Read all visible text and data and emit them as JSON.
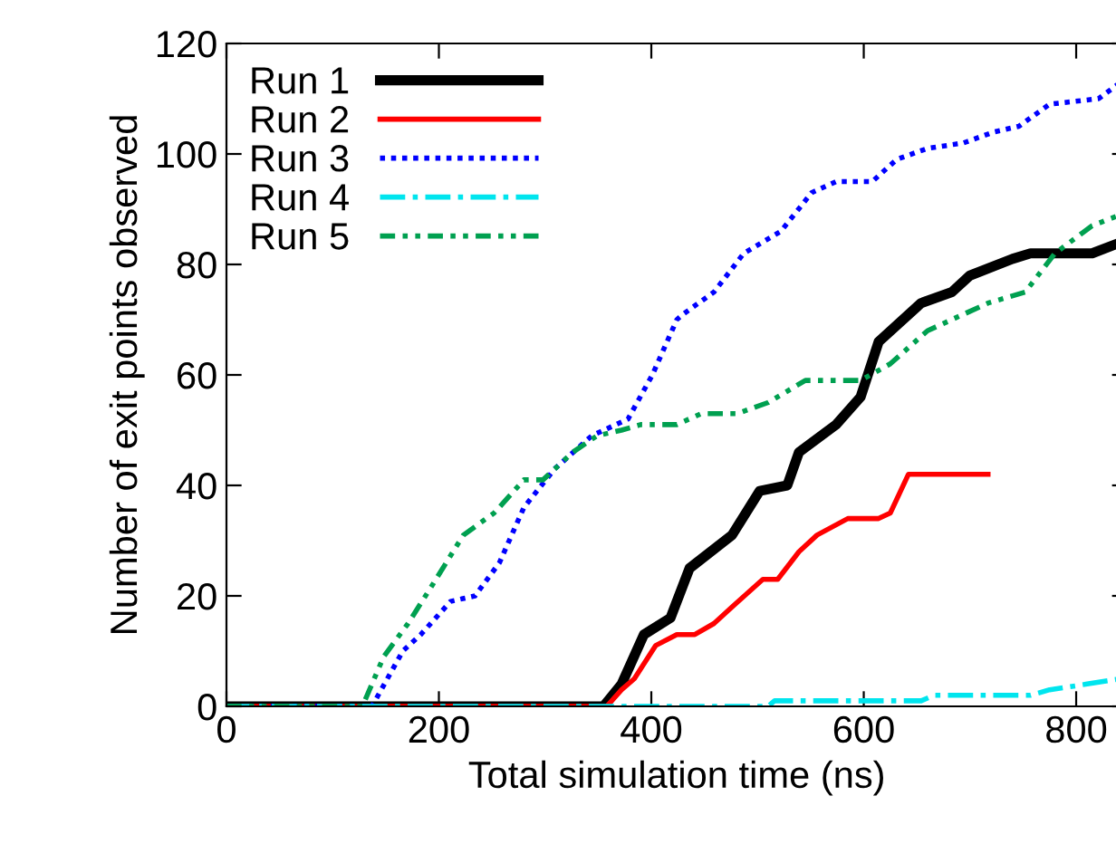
{
  "chart_data": {
    "type": "line",
    "xlabel": "Total simulation time (ns)",
    "ylabel": "Number of exit points observed",
    "xlim": [
      0,
      848
    ],
    "ylim": [
      0,
      120
    ],
    "xticks": [
      0,
      200,
      400,
      600,
      800
    ],
    "yticks": [
      0,
      20,
      40,
      60,
      80,
      100,
      120
    ],
    "grid": false,
    "legend": "top left",
    "series": [
      {
        "name": "Run 1",
        "color": "#000000",
        "line_style": "solid",
        "x": [
          0,
          355,
          372,
          393,
          418,
          436,
          476,
          502,
          528,
          539,
          574,
          597,
          614,
          654,
          683,
          700,
          740,
          757,
          815,
          842
        ],
        "values": [
          0,
          0,
          4,
          13,
          16,
          25,
          31,
          39,
          40,
          46,
          51,
          56,
          66,
          73,
          75,
          78,
          81,
          82,
          82,
          84
        ]
      },
      {
        "name": "Run 2",
        "color": "#ff0000",
        "line_style": "solid",
        "x": [
          0,
          358,
          372,
          384,
          404,
          424,
          441,
          459,
          476,
          505,
          519,
          539,
          556,
          585,
          614,
          625,
          642,
          717
        ],
        "values": [
          0,
          0,
          3,
          5,
          11,
          13,
          13,
          15,
          18,
          23,
          23,
          28,
          31,
          34,
          34,
          35,
          42,
          42
        ]
      },
      {
        "name": "Run 3",
        "color": "#0000ff",
        "line_style": "dotted",
        "x": [
          0,
          137,
          166,
          183,
          211,
          234,
          257,
          280,
          309,
          344,
          378,
          401,
          424,
          430,
          459,
          487,
          522,
          551,
          574,
          608,
          631,
          660,
          694,
          723,
          746,
          775,
          821,
          842
        ],
        "values": [
          0,
          0,
          10,
          13,
          19,
          20,
          26,
          36,
          43,
          49,
          52,
          60,
          70,
          71,
          75,
          82,
          86,
          93,
          95,
          95,
          99,
          101,
          102,
          104,
          105,
          109,
          110,
          113
        ]
      },
      {
        "name": "Run 4",
        "color": "#00e5ee",
        "line_style": "dashdot",
        "x": [
          0,
          510,
          516,
          654,
          666,
          757,
          775,
          809,
          842
        ],
        "values": [
          0,
          0,
          1,
          1,
          2,
          2,
          3,
          4,
          5
        ]
      },
      {
        "name": "Run 5",
        "color": "#00a050",
        "line_style": "dashdotdot",
        "x": [
          0,
          128,
          148,
          171,
          194,
          223,
          252,
          280,
          298,
          326,
          349,
          372,
          390,
          424,
          447,
          481,
          510,
          545,
          597,
          625,
          660,
          717,
          752,
          780,
          815,
          842
        ],
        "values": [
          0,
          0,
          9,
          15,
          22,
          31,
          35,
          41,
          41,
          46,
          49,
          50,
          51,
          51,
          53,
          53,
          55,
          59,
          59,
          62,
          68,
          73,
          75,
          82,
          87,
          89
        ]
      }
    ]
  }
}
